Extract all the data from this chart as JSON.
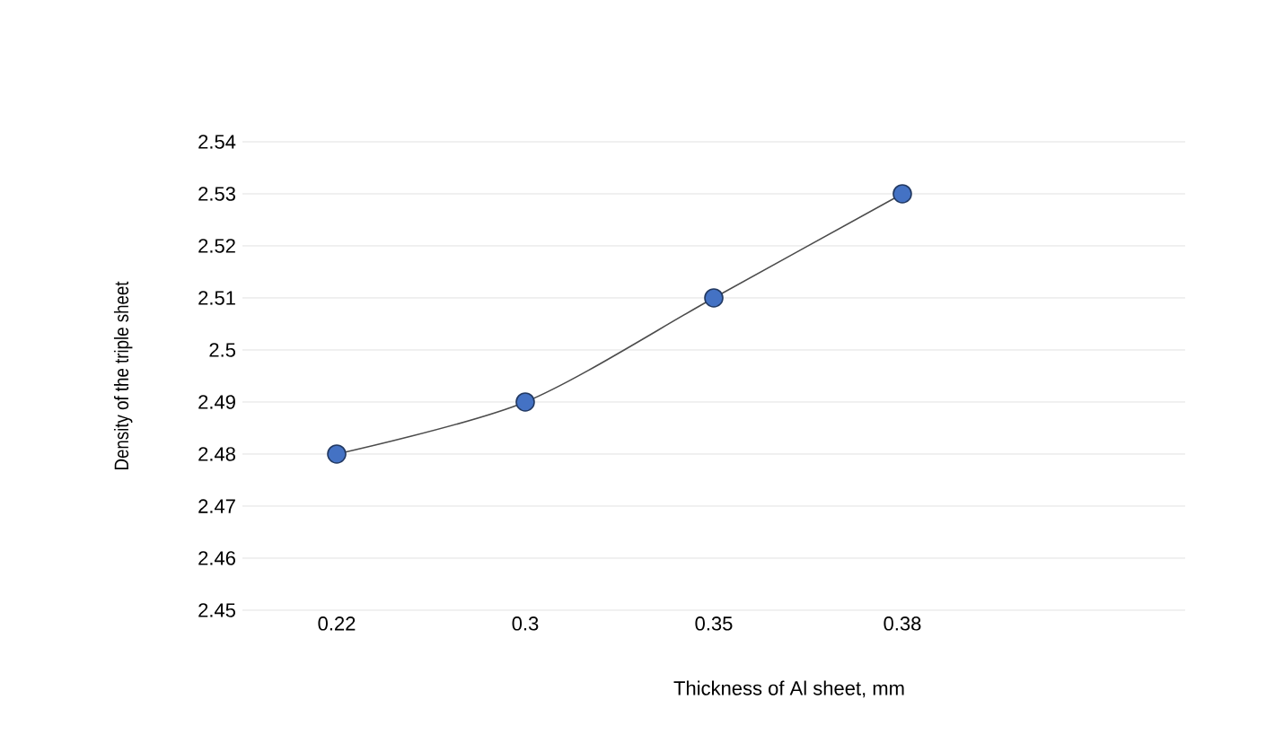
{
  "chart_data": {
    "type": "line",
    "xlabel": "Thickness of Al sheet, mm",
    "ylabel": "Density of the triple sheet",
    "categories": [
      "0.22",
      "0.3",
      "0.35",
      "0.38",
      null
    ],
    "series": [
      {
        "color": "#4472c4",
        "values": [
          2.48,
          2.49,
          2.51,
          2.53,
          null
        ]
      }
    ],
    "ylim": [
      2.45,
      2.54
    ],
    "yticks": [
      2.45,
      2.46,
      2.47,
      2.48,
      2.49,
      2.5,
      2.51,
      2.52,
      2.53,
      2.54
    ],
    "grid": "y",
    "marker": "circle",
    "line_style": "solid"
  }
}
